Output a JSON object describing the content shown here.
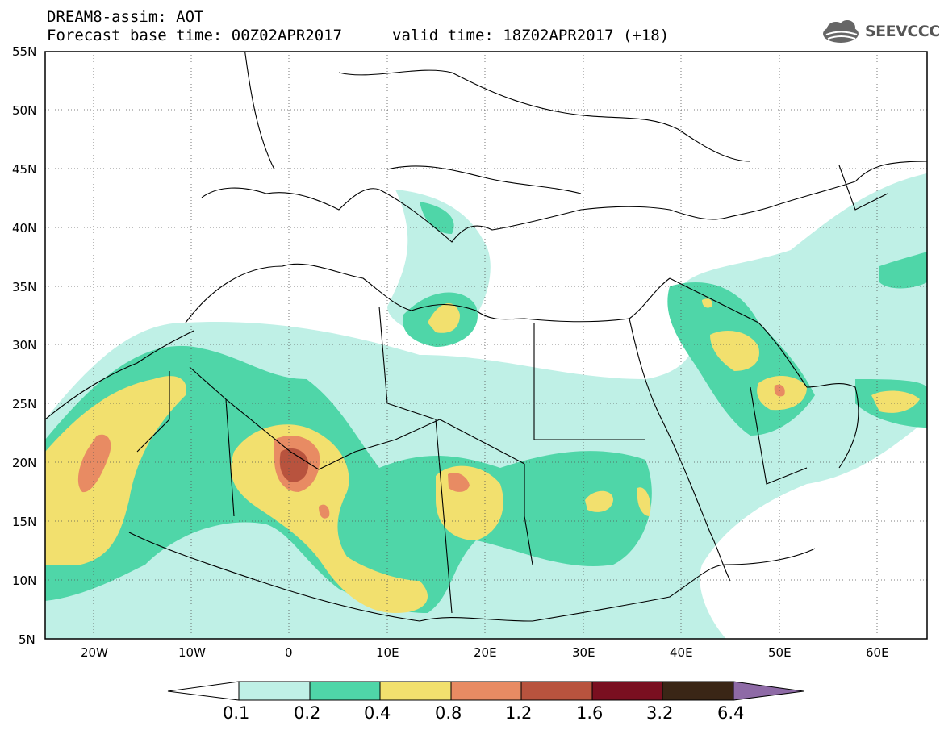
{
  "title": {
    "line1": "DREAM8-assim: AOT",
    "line2": "Forecast base time: 00Z02APR2017",
    "valid": "valid time: 18Z02APR2017 (+18)"
  },
  "logo": {
    "text": "SEEVCCC",
    "icon": "cloud-icon"
  },
  "map": {
    "lat_labels": [
      "55N",
      "50N",
      "45N",
      "40N",
      "35N",
      "30N",
      "25N",
      "20N",
      "15N",
      "10N",
      "5N"
    ],
    "lon_labels": [
      "20W",
      "10W",
      "0",
      "10E",
      "20E",
      "30E",
      "40E",
      "50E",
      "60E"
    ],
    "colors": {
      "c01": "#bff0e6",
      "c02": "#4fd6a8",
      "c04": "#f2e06e",
      "c08": "#e88b63",
      "c12": "#b8533e",
      "c16": "#7a0f20",
      "c32": "#3a2616",
      "c64": "#8e6aa6"
    }
  },
  "legend": {
    "labels": [
      "0.1",
      "0.2",
      "0.4",
      "0.8",
      "1.2",
      "1.6",
      "3.2",
      "6.4"
    ]
  }
}
